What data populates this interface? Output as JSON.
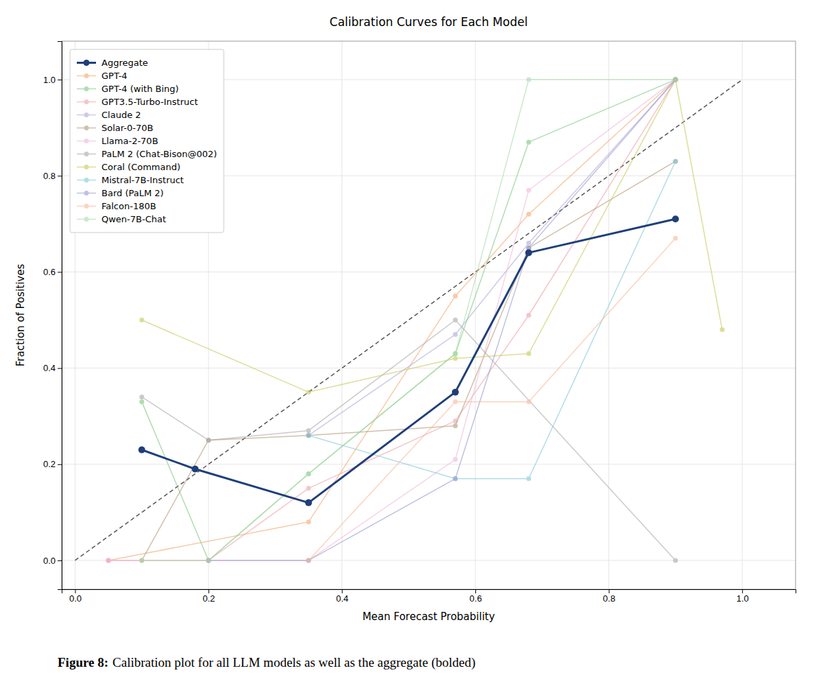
{
  "chart_data": {
    "type": "line",
    "title": "Calibration Curves for Each Model",
    "x_label": "Mean Forecast Probability",
    "y_label": "Fraction of Positives",
    "caption_label": "Figure 8:",
    "caption": "Calibration plot for all LLM models as well as the aggregate (bolded)",
    "marker": "circle",
    "grid": true,
    "legend": "upper-left",
    "xlim": [
      -0.02,
      1.08
    ],
    "ylim": [
      -0.06,
      1.08
    ],
    "xticks": [
      {
        "value": 0,
        "label": "0.0"
      },
      0.2,
      0.4,
      0.6,
      0.8,
      {
        "value": 1,
        "label": "1.0"
      }
    ],
    "yticks": [
      {
        "value": 0,
        "label": "0.0"
      },
      0.2,
      0.4,
      0.6,
      0.8,
      {
        "value": 1,
        "label": "1.0"
      }
    ],
    "reference_line": {
      "x": [
        0.0,
        1.0
      ],
      "values": [
        0.0,
        1.0
      ],
      "line_style": "dashed"
    },
    "series": [
      {
        "name": "Aggregate",
        "color": "#1f3f7a",
        "x": [
          0.1,
          0.18,
          0.35,
          0.57,
          0.68,
          0.9
        ],
        "values": [
          0.23,
          0.19,
          0.12,
          0.35,
          0.64,
          0.71
        ]
      },
      {
        "name": "GPT-4",
        "color": "#f5a86e",
        "x": [
          0.05,
          0.35,
          0.57,
          0.68,
          0.9
        ],
        "values": [
          0.0,
          0.08,
          0.55,
          0.72,
          1.0
        ]
      },
      {
        "name": "GPT-4 (with Bing)",
        "color": "#7dc87d",
        "x": [
          0.1,
          0.2,
          0.35,
          0.57,
          0.68,
          0.9
        ],
        "values": [
          0.33,
          0.0,
          0.18,
          0.43,
          0.87,
          1.0
        ]
      },
      {
        "name": "GPT3.5-Turbo-Instruct",
        "color": "#f0a0a8",
        "x": [
          0.05,
          0.2,
          0.35,
          0.57,
          0.68,
          0.9
        ],
        "values": [
          0.0,
          0.0,
          0.15,
          0.29,
          0.51,
          1.0
        ]
      },
      {
        "name": "Claude 2",
        "color": "#b0a8d8",
        "x": [
          0.35,
          0.57,
          0.68,
          0.9
        ],
        "values": [
          0.26,
          0.47,
          0.66,
          1.0
        ]
      },
      {
        "name": "Solar-0-70B",
        "color": "#b09878",
        "x": [
          0.1,
          0.2,
          0.35,
          0.57,
          0.68,
          0.9
        ],
        "values": [
          0.0,
          0.25,
          0.26,
          0.28,
          0.65,
          0.83
        ]
      },
      {
        "name": "Llama-2-70B",
        "color": "#f0b8d8",
        "x": [
          0.05,
          0.35,
          0.57,
          0.68,
          0.9
        ],
        "values": [
          0.0,
          0.0,
          0.21,
          0.77,
          1.0
        ]
      },
      {
        "name": "PaLM 2 (Chat-Bison@002)",
        "color": "#a8a8a8",
        "x": [
          0.1,
          0.2,
          0.35,
          0.57,
          0.9
        ],
        "values": [
          0.34,
          0.25,
          0.27,
          0.5,
          0.0
        ]
      },
      {
        "name": "Coral (Command)",
        "color": "#c8c858",
        "x": [
          0.1,
          0.35,
          0.57,
          0.68,
          0.9,
          0.97
        ],
        "values": [
          0.5,
          0.35,
          0.42,
          0.43,
          1.0,
          0.48
        ]
      },
      {
        "name": "Mistral-7B-Instruct",
        "color": "#80c8d8",
        "x": [
          0.35,
          0.57,
          0.68,
          0.9
        ],
        "values": [
          0.26,
          0.17,
          0.17,
          0.83
        ]
      },
      {
        "name": "Bard (PaLM 2)",
        "color": "#9898d0",
        "x": [
          0.2,
          0.35,
          0.57,
          0.68,
          0.9
        ],
        "values": [
          0.0,
          0.0,
          0.17,
          0.65,
          1.0
        ]
      },
      {
        "name": "Falcon-180B",
        "color": "#f8b898",
        "x": [
          0.35,
          0.57,
          0.68,
          0.9
        ],
        "values": [
          0.0,
          0.33,
          0.33,
          0.67
        ]
      },
      {
        "name": "Qwen-7B-Chat",
        "color": "#a8dca8",
        "x": [
          0.1,
          0.2,
          0.35,
          0.57,
          0.68,
          0.9
        ],
        "values": [
          0.0,
          0.0,
          0.18,
          0.43,
          1.0,
          1.0
        ]
      }
    ]
  }
}
